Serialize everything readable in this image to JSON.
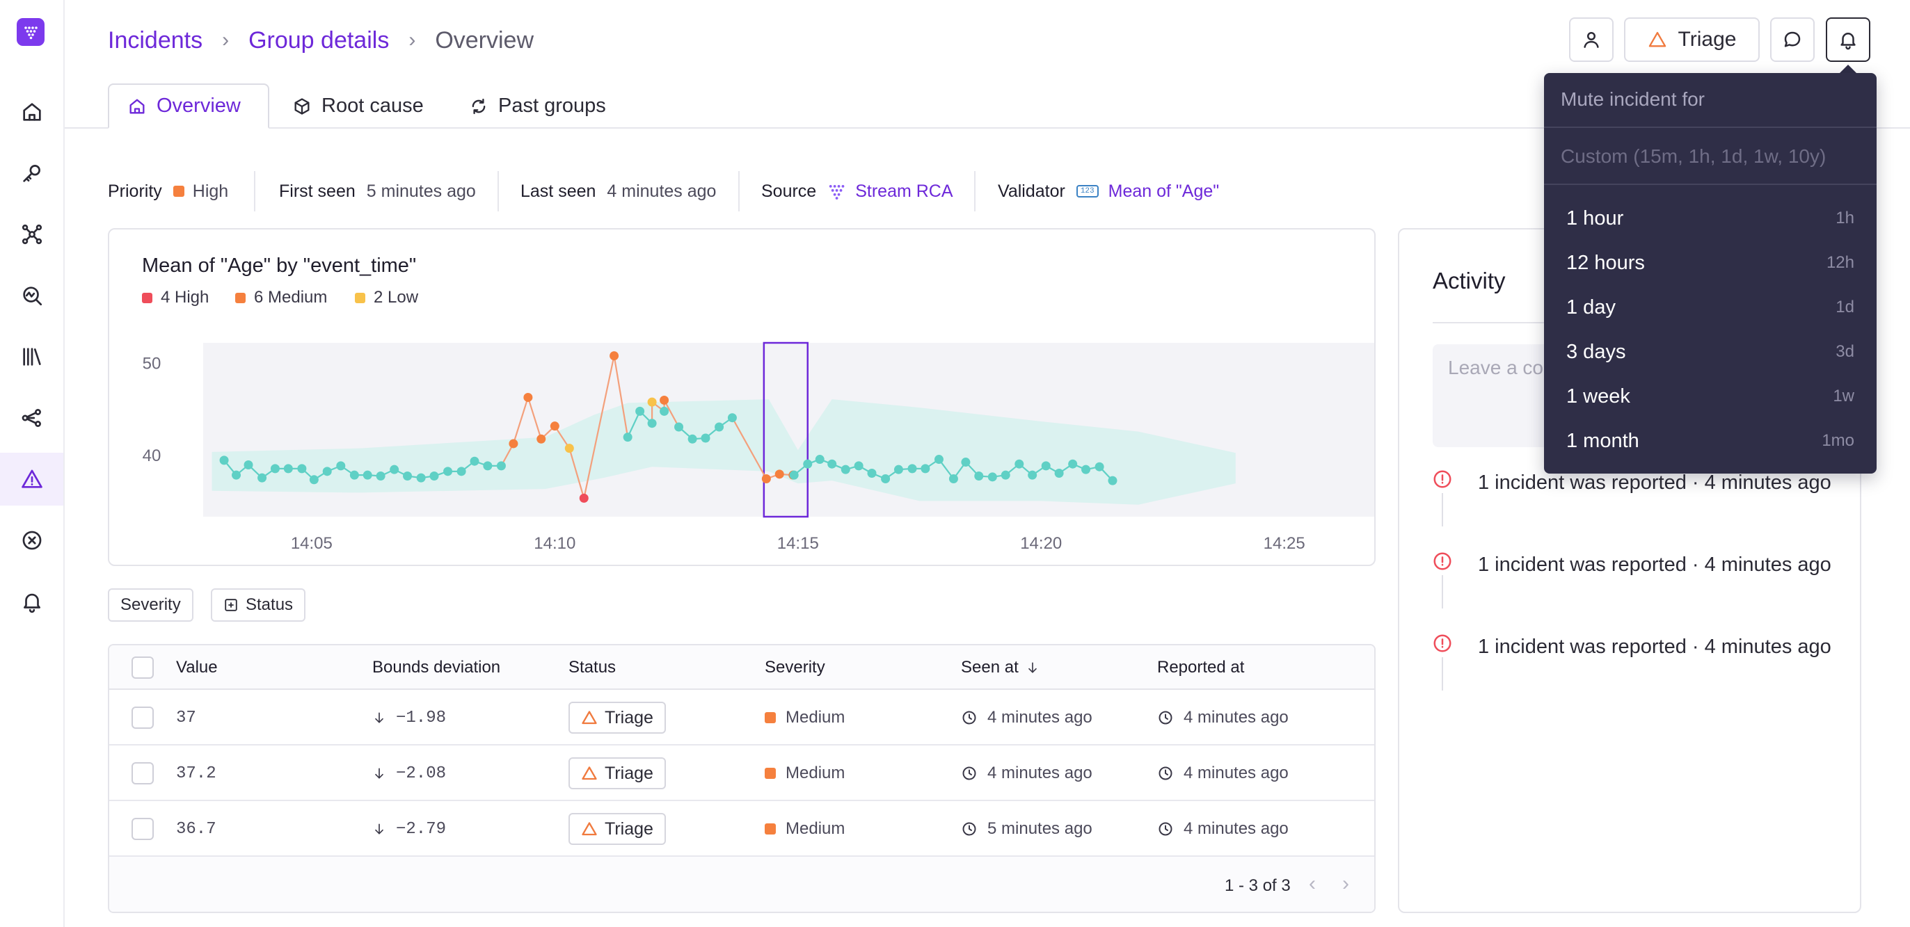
{
  "header": {
    "breadcrumbs": [
      "Incidents",
      "Group details",
      "Overview"
    ],
    "triage_label": "Triage"
  },
  "tabs": [
    {
      "label": "Overview",
      "icon": "home-icon",
      "active": true
    },
    {
      "label": "Root cause",
      "icon": "cube-icon"
    },
    {
      "label": "Past groups",
      "icon": "refresh-icon"
    }
  ],
  "meta": {
    "priority_label": "Priority",
    "priority_value": "High",
    "priority_color": "#f5803e",
    "first_seen_label": "First seen",
    "first_seen_value": "5 minutes ago",
    "last_seen_label": "Last seen",
    "last_seen_value": "4 minutes ago",
    "source_label": "Source",
    "source_value": "Stream RCA",
    "validator_label": "Validator",
    "validator_badge": "123",
    "validator_value": "Mean of \"Age\""
  },
  "chart_data": {
    "type": "line",
    "title": "Mean of \"Age\" by \"event_time\"",
    "legend": [
      {
        "label": "4 High",
        "color": "#ef4d5a"
      },
      {
        "label": "6 Medium",
        "color": "#f5803e"
      },
      {
        "label": "2 Low",
        "color": "#f8c24a"
      }
    ],
    "x_ticks": [
      "14:05",
      "14:10",
      "14:15",
      "14:20",
      "14:25"
    ],
    "y_ticks": [
      "50",
      "40"
    ],
    "xlim": [
      2.77,
      26.85
    ],
    "ylim": [
      33.4,
      52.2
    ],
    "x_unit": "minutes after 14:00",
    "band_upper": [
      [
        2.95,
        40.4
      ],
      [
        6.0,
        40.8
      ],
      [
        9.8,
        42.0
      ],
      [
        10.8,
        44.4
      ],
      [
        11.5,
        45.7
      ],
      [
        14.4,
        46.1
      ],
      [
        15.0,
        40.6
      ],
      [
        15.7,
        46.1
      ],
      [
        17.5,
        45.2
      ],
      [
        20.0,
        43.7
      ],
      [
        22.0,
        42.6
      ],
      [
        24.0,
        40.3
      ]
    ],
    "band_lower": [
      [
        2.95,
        36.2
      ],
      [
        6.0,
        36.0
      ],
      [
        9.8,
        36.4
      ],
      [
        11.0,
        37.6
      ],
      [
        12.0,
        38.8
      ],
      [
        14.4,
        38.3
      ],
      [
        15.0,
        37.0
      ],
      [
        15.7,
        37.3
      ],
      [
        17.5,
        35.1
      ],
      [
        20.0,
        35.1
      ],
      [
        22.0,
        34.7
      ],
      [
        24.0,
        37.0
      ]
    ],
    "highlight_range": [
      14.3,
      15.2
    ],
    "series": [
      {
        "color": "#5fd0c5",
        "values": [
          [
            3.2,
            39.5
          ],
          [
            3.45,
            37.9
          ],
          [
            3.7,
            39.0
          ],
          [
            3.98,
            37.6
          ],
          [
            4.25,
            38.6
          ],
          [
            4.52,
            38.6
          ],
          [
            4.8,
            38.6
          ],
          [
            5.05,
            37.4
          ],
          [
            5.32,
            38.3
          ],
          [
            5.6,
            38.9
          ],
          [
            5.88,
            37.9
          ],
          [
            6.15,
            37.9
          ],
          [
            6.42,
            37.8
          ],
          [
            6.7,
            38.5
          ],
          [
            6.97,
            37.8
          ],
          [
            7.25,
            37.6
          ],
          [
            7.52,
            37.8
          ],
          [
            7.8,
            38.3
          ],
          [
            8.08,
            38.3
          ],
          [
            8.35,
            39.4
          ],
          [
            8.62,
            38.9
          ],
          [
            8.9,
            38.9
          ],
          [
            11.5,
            42.0
          ],
          [
            11.75,
            44.8
          ],
          [
            12.0,
            43.5
          ],
          [
            12.25,
            44.8
          ],
          [
            12.55,
            43.1
          ],
          [
            12.83,
            41.8
          ],
          [
            13.1,
            41.9
          ],
          [
            13.38,
            43.1
          ],
          [
            13.65,
            44.1
          ]
        ]
      },
      {
        "color": "#f5803e",
        "values": [
          [
            9.15,
            41.3
          ],
          [
            9.45,
            46.3
          ],
          [
            9.72,
            41.8
          ],
          [
            10.0,
            43.2
          ]
        ]
      },
      {
        "color": "#f8c24a",
        "values": [
          [
            10.3,
            40.8
          ]
        ]
      },
      {
        "color": "#ef4d5a",
        "values": [
          [
            10.6,
            35.4
          ]
        ]
      },
      {
        "color": "#f5803e",
        "values": [
          [
            11.22,
            50.8
          ]
        ]
      },
      {
        "color": "#f8c24a",
        "values": [
          [
            12.0,
            45.8
          ]
        ]
      },
      {
        "color": "#f5803e",
        "values": [
          [
            12.25,
            46.0
          ],
          [
            14.35,
            37.5
          ],
          [
            14.62,
            38.0
          ],
          [
            14.9,
            37.9
          ]
        ]
      },
      {
        "color": "#5fd0c5",
        "values": [
          [
            14.92,
            37.9
          ],
          [
            15.2,
            39.1
          ],
          [
            15.45,
            39.6
          ],
          [
            15.7,
            39.1
          ],
          [
            15.98,
            38.5
          ],
          [
            16.25,
            38.9
          ],
          [
            16.52,
            38.1
          ],
          [
            16.8,
            37.5
          ],
          [
            17.07,
            38.5
          ],
          [
            17.35,
            38.6
          ],
          [
            17.62,
            38.6
          ],
          [
            17.9,
            39.6
          ],
          [
            18.2,
            37.5
          ],
          [
            18.45,
            39.3
          ],
          [
            18.72,
            37.8
          ],
          [
            19.0,
            37.7
          ],
          [
            19.27,
            37.9
          ],
          [
            19.55,
            39.1
          ],
          [
            19.82,
            37.9
          ],
          [
            20.1,
            38.9
          ],
          [
            20.37,
            38.1
          ],
          [
            20.65,
            39.1
          ],
          [
            20.92,
            38.5
          ],
          [
            21.2,
            38.8
          ],
          [
            21.47,
            37.3
          ]
        ]
      }
    ]
  },
  "filters": {
    "severity_label": "Severity",
    "status_label": "Status"
  },
  "table": {
    "columns": [
      "Value",
      "Bounds deviation",
      "Status",
      "Severity",
      "Seen at",
      "Reported at"
    ],
    "rows": [
      {
        "value": "37",
        "deviation": "−1.98",
        "status": "Triage",
        "severity": "Medium",
        "seen_at": "4 minutes ago",
        "reported_at": "4 minutes ago"
      },
      {
        "value": "37.2",
        "deviation": "−2.08",
        "status": "Triage",
        "severity": "Medium",
        "seen_at": "4 minutes ago",
        "reported_at": "4 minutes ago"
      },
      {
        "value": "36.7",
        "deviation": "−2.79",
        "status": "Triage",
        "severity": "Medium",
        "seen_at": "5 minutes ago",
        "reported_at": "4 minutes ago"
      }
    ],
    "pagination": "1 - 3 of 3",
    "severity_color": "#f5803e"
  },
  "activity": {
    "title": "Activity",
    "comment_placeholder": "Leave a co",
    "items": [
      "1 incident was reported · 4 minutes ago",
      "1 incident was reported · 4 minutes ago",
      "1 incident was reported · 4 minutes ago"
    ]
  },
  "mute_menu": {
    "title": "Mute incident for",
    "custom_placeholder": "Custom (15m, 1h, 1d, 1w, 10y)",
    "options": [
      {
        "label": "1 hour",
        "shortcut": "1h"
      },
      {
        "label": "12 hours",
        "shortcut": "12h"
      },
      {
        "label": "1 day",
        "shortcut": "1d"
      },
      {
        "label": "3 days",
        "shortcut": "3d"
      },
      {
        "label": "1 week",
        "shortcut": "1w"
      },
      {
        "label": "1 month",
        "shortcut": "1mo"
      }
    ]
  },
  "colors": {
    "brand": "#6d28d9",
    "menu_bg": "#2f2e47",
    "alert": "#ef4d5a"
  }
}
